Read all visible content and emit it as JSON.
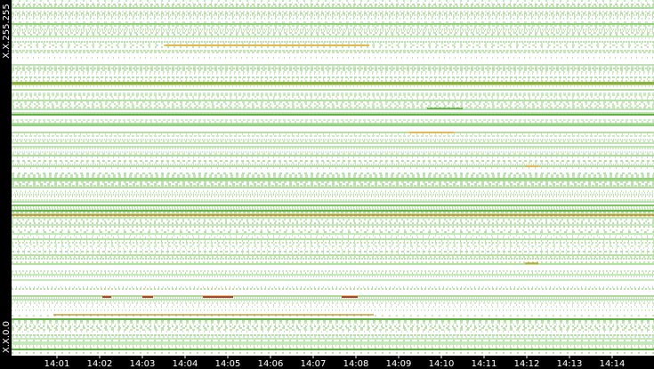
{
  "chart_data": {
    "type": "heatmap",
    "y_range_labels": {
      "top": "X.X.255.255",
      "bottom": "X.X.0.0"
    },
    "categories": [
      "14:01",
      "14:02",
      "14:03",
      "14:04",
      "14:05",
      "14:06",
      "14:07",
      "14:08",
      "14:09",
      "14:10",
      "14:11",
      "14:12",
      "14:13",
      "14:14"
    ]
  }
}
